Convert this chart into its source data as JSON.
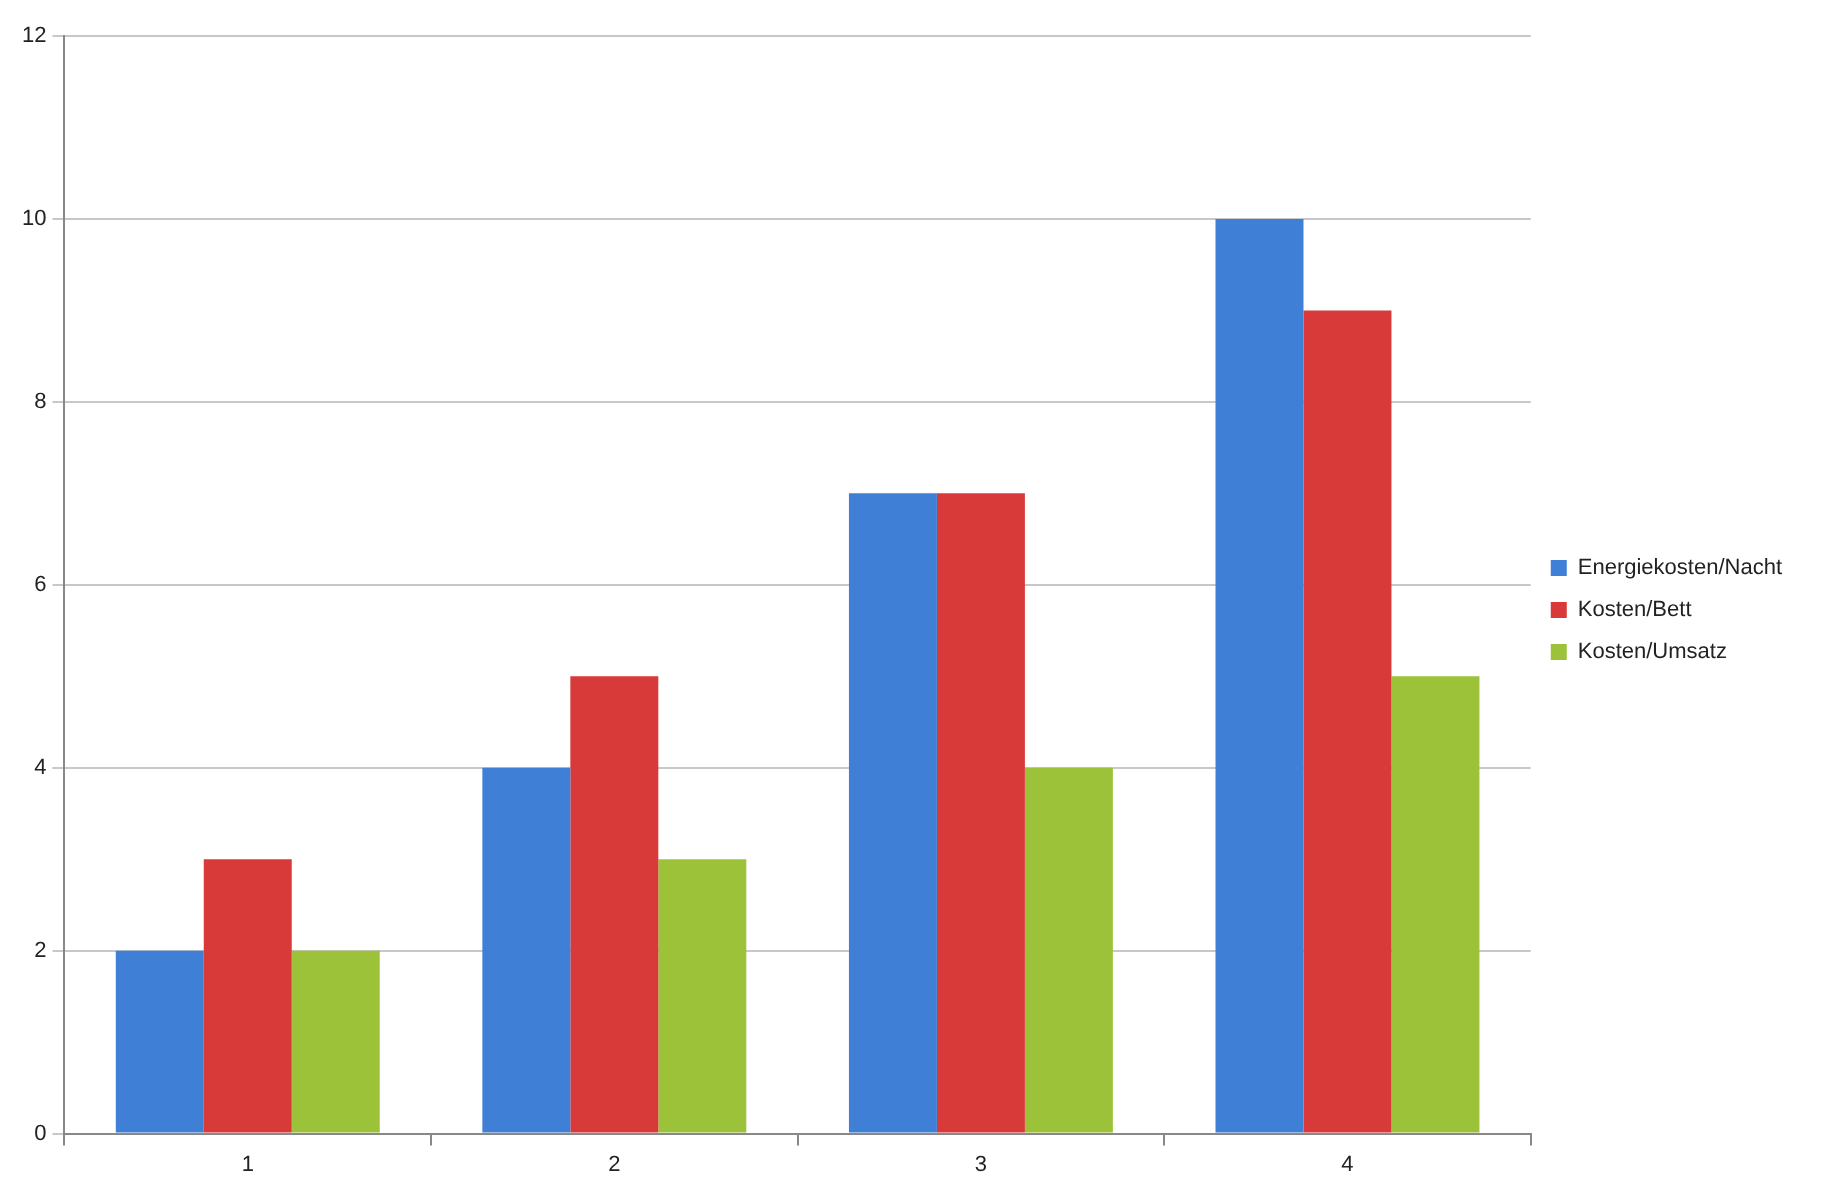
{
  "chart_data": {
    "type": "bar",
    "categories": [
      "1",
      "2",
      "3",
      "4"
    ],
    "series": [
      {
        "name": "Energiekosten/Nacht",
        "color": "#3f7fd6",
        "values": [
          2,
          4,
          7,
          10
        ]
      },
      {
        "name": "Kosten/Bett",
        "color": "#d83a3a",
        "values": [
          3,
          5,
          7,
          9
        ]
      },
      {
        "name": "Kosten/Umsatz",
        "color": "#9cc23a",
        "values": [
          2,
          3,
          4,
          5
        ]
      }
    ],
    "ylim": [
      0,
      12
    ],
    "yticks": [
      0,
      2,
      4,
      6,
      8,
      10,
      12
    ],
    "grid": "y",
    "legend": "right"
  }
}
